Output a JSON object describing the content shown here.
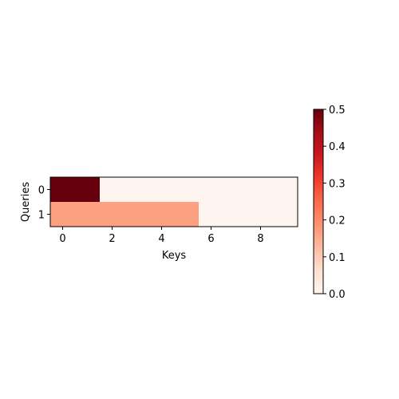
{
  "chart_data": {
    "type": "heatmap",
    "title": "",
    "xlabel": "Keys",
    "ylabel": "Queries",
    "x_categories": [
      0,
      1,
      2,
      3,
      4,
      5,
      6,
      7,
      8,
      9
    ],
    "y_categories": [
      0,
      1
    ],
    "x_tick_labels": [
      "0",
      "2",
      "4",
      "6",
      "8"
    ],
    "y_tick_labels": [
      "0",
      "1"
    ],
    "values": [
      [
        0.5,
        0.5,
        0,
        0,
        0,
        0,
        0,
        0,
        0,
        0
      ],
      [
        0.1667,
        0.1667,
        0.1667,
        0.1667,
        0.1667,
        0.1667,
        0,
        0,
        0,
        0
      ]
    ],
    "colormap": "Reds",
    "vmin": 0.0,
    "vmax": 0.5,
    "colorbar": {
      "ticks": [
        0.0,
        0.1,
        0.2,
        0.3,
        0.4,
        0.5
      ],
      "tick_labels": [
        "0.0",
        "0.1",
        "0.2",
        "0.3",
        "0.4",
        "0.5"
      ]
    },
    "grid": false
  }
}
